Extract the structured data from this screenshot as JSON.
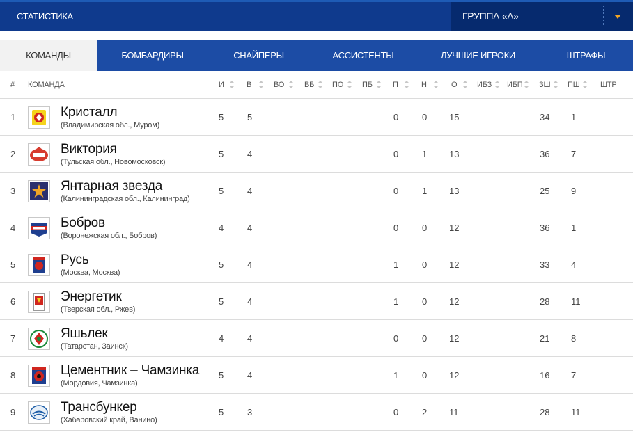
{
  "header": {
    "title": "СТАТИСТИКА",
    "group_label": "ГРУППА «А»"
  },
  "tabs": [
    {
      "label": "КОМАНДЫ",
      "active": true
    },
    {
      "label": "БОМБАРДИРЫ"
    },
    {
      "label": "СНАЙПЕРЫ"
    },
    {
      "label": "АССИСТЕНТЫ"
    },
    {
      "label": "ЛУЧШИЕ ИГРОКИ"
    },
    {
      "label": "ШТРАФЫ"
    }
  ],
  "columns": [
    "#",
    "КОМАНДА",
    "И",
    "В",
    "ВО",
    "ВБ",
    "ПО",
    "ПБ",
    "П",
    "Н",
    "О",
    "ИБЗ",
    "ИБП",
    "ЗШ",
    "ПШ",
    "ШТР"
  ],
  "rows": [
    {
      "pos": "1",
      "team": "Кристалл",
      "region": "(Владимирская обл., Муром)",
      "logo_icon": "kristall-logo-icon",
      "i": "5",
      "v": "5",
      "p": "0",
      "n": "0",
      "o": "15",
      "zsh": "34",
      "psh": "1"
    },
    {
      "pos": "2",
      "team": "Виктория",
      "region": "(Тульская обл., Новомосковск)",
      "logo_icon": "viktoria-logo-icon",
      "i": "5",
      "v": "4",
      "p": "0",
      "n": "1",
      "o": "13",
      "zsh": "36",
      "psh": "7"
    },
    {
      "pos": "3",
      "team": "Янтарная звезда",
      "region": "(Калининградская обл., Калининград)",
      "logo_icon": "yantarnaya-zvezda-logo-icon",
      "i": "5",
      "v": "4",
      "p": "0",
      "n": "1",
      "o": "13",
      "zsh": "25",
      "psh": "9"
    },
    {
      "pos": "4",
      "team": "Бобров",
      "region": "(Воронежская обл., Бобров)",
      "logo_icon": "bobrov-logo-icon",
      "i": "4",
      "v": "4",
      "p": "0",
      "n": "0",
      "o": "12",
      "zsh": "36",
      "psh": "1"
    },
    {
      "pos": "5",
      "team": "Русь",
      "region": "(Москва, Москва)",
      "logo_icon": "rus-logo-icon",
      "i": "5",
      "v": "4",
      "p": "1",
      "n": "0",
      "o": "12",
      "zsh": "33",
      "psh": "4"
    },
    {
      "pos": "6",
      "team": "Энергетик",
      "region": "(Тверская обл., Ржев)",
      "logo_icon": "energetik-logo-icon",
      "i": "5",
      "v": "4",
      "p": "1",
      "n": "0",
      "o": "12",
      "zsh": "28",
      "psh": "11"
    },
    {
      "pos": "7",
      "team": "Яшьлек",
      "region": "(Татарстан, Заинск)",
      "logo_icon": "yashlek-logo-icon",
      "i": "4",
      "v": "4",
      "p": "0",
      "n": "0",
      "o": "12",
      "zsh": "21",
      "psh": "8"
    },
    {
      "pos": "8",
      "team": "Цементник – Чамзинка",
      "region": "(Мордовия, Чамзинка)",
      "logo_icon": "cementnik-logo-icon",
      "i": "5",
      "v": "4",
      "p": "1",
      "n": "0",
      "o": "12",
      "zsh": "16",
      "psh": "7"
    },
    {
      "pos": "9",
      "team": "Трансбункер",
      "region": "(Хабаровский край, Ванино)",
      "logo_icon": "transbunker-logo-icon",
      "i": "5",
      "v": "3",
      "p": "0",
      "n": "2",
      "o": "11",
      "zsh": "28",
      "psh": "11"
    }
  ]
}
